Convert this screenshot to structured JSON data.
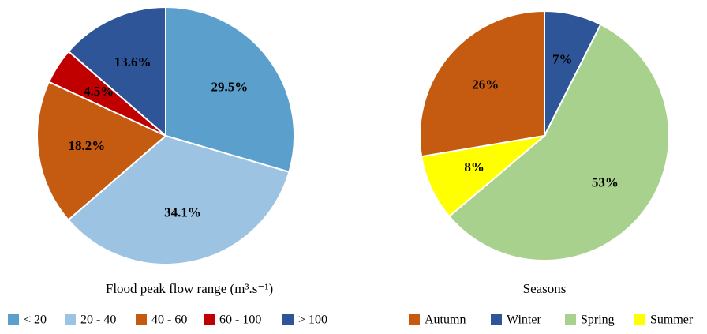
{
  "chart_data": [
    {
      "type": "pie",
      "title": "Flood peak flow range (m³.s⁻¹)",
      "categories": [
        "< 20",
        "20 - 40",
        "40 - 60",
        "60 - 100",
        "> 100"
      ],
      "values": [
        29.5,
        34.1,
        18.2,
        4.5,
        13.6
      ],
      "value_labels": [
        "29.5%",
        "34.1%",
        "18.2%",
        "4.5%",
        "13.6%"
      ],
      "colors": [
        "#5b9fcd",
        "#9dc3e2",
        "#c55a11",
        "#c00000",
        "#2e5597"
      ]
    },
    {
      "type": "pie",
      "title": "Seasons",
      "categories": [
        "Autumn",
        "Winter",
        "Spring",
        "Summer"
      ],
      "values": [
        26,
        7,
        53,
        8
      ],
      "value_labels": [
        "26%",
        "7%",
        "53%",
        "8%"
      ],
      "colors": [
        "#c55a11",
        "#2e5597",
        "#a9d18e",
        "#ffff00"
      ]
    }
  ]
}
